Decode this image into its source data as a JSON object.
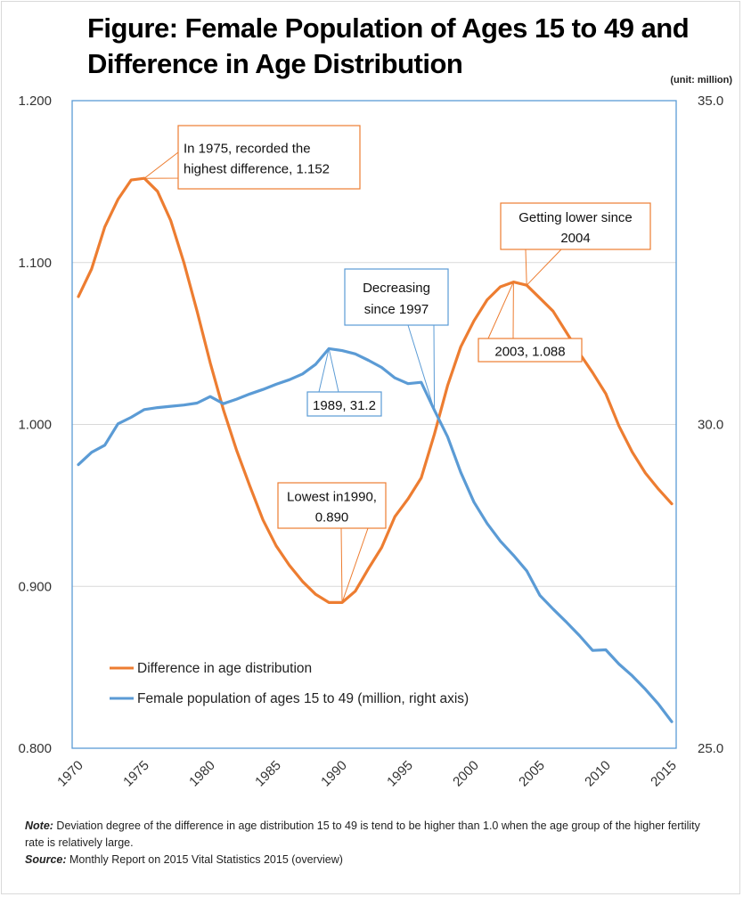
{
  "title_line1": "Figure: Female Population of Ages 15 to 49 and",
  "title_line2": "Difference in Age Distribution",
  "unit_label": "(unit: million)",
  "colors": {
    "orange": "#ED7D31",
    "blue": "#5B9BD5",
    "grid": "#d9d9d9",
    "frame": "#5B9BD5"
  },
  "notes": {
    "note_label": "Note:",
    "note_text": " Deviation degree of the difference in age distribution 15 to 49 is tend to be higher than 1.0 when the age group of the higher fertility rate is relatively large.",
    "source_label": "Source:",
    "source_text": " Monthly Report on 2015 Vital Statistics 2015 (overview)"
  },
  "chart_data": {
    "type": "line",
    "title": "Figure: Female Population of Ages 15 to 49 and Difference in Age Distribution",
    "xlabel": "",
    "ylabel_left": "",
    "ylabel_right": "",
    "x": [
      1970,
      1971,
      1972,
      1973,
      1974,
      1975,
      1976,
      1977,
      1978,
      1979,
      1980,
      1981,
      1982,
      1983,
      1984,
      1985,
      1986,
      1987,
      1988,
      1989,
      1990,
      1991,
      1992,
      1993,
      1994,
      1995,
      1996,
      1997,
      1998,
      1999,
      2000,
      2001,
      2002,
      2003,
      2004,
      2005,
      2006,
      2007,
      2008,
      2009,
      2010,
      2011,
      2012,
      2013,
      2014,
      2015
    ],
    "xticks": [
      "1970",
      "1975",
      "1980",
      "1985",
      "1990",
      "1995",
      "2000",
      "2005",
      "2010",
      "2015"
    ],
    "xlim": [
      1970,
      2015
    ],
    "ylim_left": [
      0.8,
      1.2
    ],
    "yticks_left": [
      "0.800",
      "0.900",
      "1.000",
      "1.100",
      "1.200"
    ],
    "ylim_right": [
      25.0,
      35.0
    ],
    "yticks_right": [
      "25.0",
      "30.0",
      "35.0"
    ],
    "grid": true,
    "legend_position": "bottom-left",
    "series": [
      {
        "name": "Difference in age distribution",
        "axis": "left",
        "color": "#ED7D31",
        "values": [
          1.079,
          1.096,
          1.122,
          1.139,
          1.151,
          1.152,
          1.144,
          1.126,
          1.1,
          1.07,
          1.038,
          1.009,
          0.984,
          0.962,
          0.941,
          0.925,
          0.913,
          0.903,
          0.895,
          0.89,
          0.89,
          0.897,
          0.911,
          0.924,
          0.943,
          0.954,
          0.967,
          0.994,
          1.024,
          1.048,
          1.064,
          1.077,
          1.085,
          1.088,
          1.086,
          1.078,
          1.07,
          1.057,
          1.044,
          1.032,
          1.019,
          0.999,
          0.983,
          0.97,
          0.96,
          0.951
        ]
      },
      {
        "name": "Female population of ages 15 to 49 (million, right axis)",
        "axis": "right",
        "color": "#5B9BD5",
        "values": [
          29.38,
          29.57,
          29.68,
          30.01,
          30.11,
          30.23,
          30.26,
          30.28,
          30.3,
          30.33,
          30.43,
          30.32,
          30.39,
          30.47,
          30.54,
          30.62,
          30.69,
          30.78,
          30.93,
          31.17,
          31.14,
          31.09,
          30.99,
          30.88,
          30.72,
          30.63,
          30.65,
          30.22,
          29.81,
          29.26,
          28.8,
          28.47,
          28.2,
          27.98,
          27.74,
          27.36,
          27.15,
          26.95,
          26.74,
          26.51,
          26.52,
          26.3,
          26.12,
          25.91,
          25.68,
          25.41
        ]
      }
    ],
    "annotations": [
      {
        "id": "peak-1975",
        "series": 0,
        "year": 1975,
        "lines": [
          "In 1975, recorded the",
          "highest difference, 1.152"
        ]
      },
      {
        "id": "since-2004",
        "series": 0,
        "year": 2004,
        "lines": [
          "Getting lower since",
          "2004"
        ]
      },
      {
        "id": "peak-2003",
        "series": 0,
        "year": 2003,
        "lines": [
          "2003, 1.088"
        ]
      },
      {
        "id": "lowest-1990",
        "series": 0,
        "year": 1990,
        "lines": [
          "Lowest in1990,",
          "0.890"
        ]
      },
      {
        "id": "since-1997",
        "series": 1,
        "year": 1997,
        "lines": [
          "Decreasing",
          "since 1997"
        ]
      },
      {
        "id": "peak-1989",
        "series": 1,
        "year": 1989,
        "lines": [
          "1989, 31.2"
        ]
      }
    ]
  }
}
